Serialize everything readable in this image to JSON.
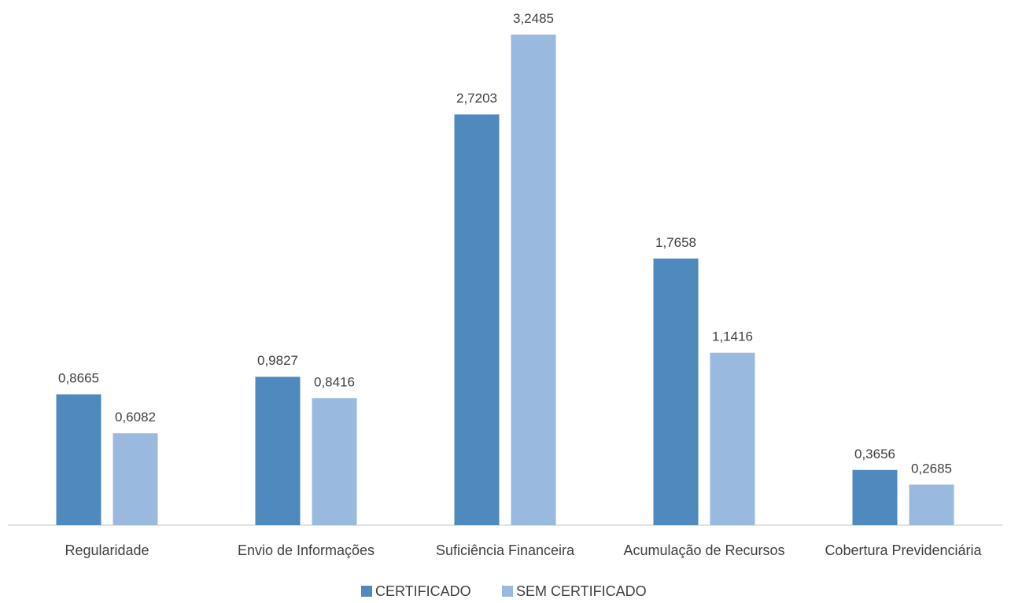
{
  "chart_data": {
    "type": "bar",
    "title": "",
    "xlabel": "",
    "ylabel": "",
    "categories": [
      "Regularidade",
      "Envio de Informações",
      "Suficiência Financeira",
      "Acumulação de Recursos",
      "Cobertura Previdenciária"
    ],
    "series": [
      {
        "name": "CERTIFICADO",
        "values": [
          0.8665,
          0.9827,
          2.7203,
          1.7658,
          0.3656
        ],
        "labels": [
          "0,8665",
          "0,9827",
          "2,7203",
          "1,7658",
          "0,3656"
        ],
        "color": "#4F89BD"
      },
      {
        "name": "SEM CERTIFICADO",
        "values": [
          0.6082,
          0.8416,
          3.2485,
          1.1416,
          0.2685
        ],
        "labels": [
          "0,6082",
          "0,8416",
          "3,2485",
          "1,1416",
          "0,2685"
        ],
        "color": "#99B9DF"
      }
    ],
    "ylim": [
      0,
      3.2485
    ],
    "grid": false,
    "legend_position": "bottom",
    "axis_color": "#D9D9D9"
  }
}
